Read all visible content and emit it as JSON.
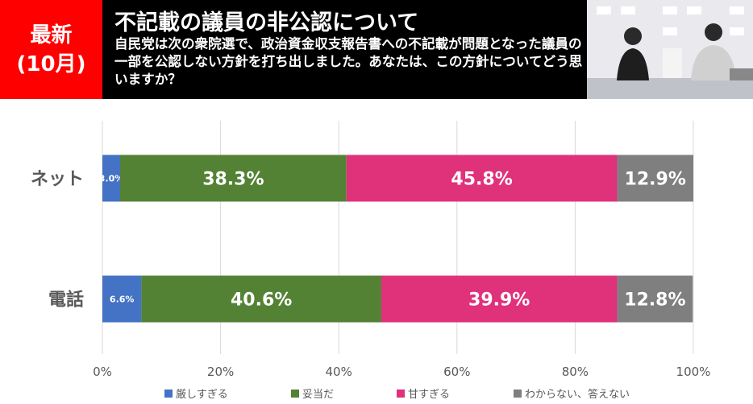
{
  "header": {
    "badge": [
      "最新",
      "(10月)"
    ],
    "title": "不記載の議員の非公認について",
    "subtitle": "自民党は次の衆院選で、政治資金収支報告書への不記載が問題となった議員の一部を公認しない方針を打ち出しました。あなたは、この方針についてどう思いますか？"
  },
  "chart_data": {
    "type": "bar",
    "orientation": "horizontal",
    "stacked": true,
    "categories": [
      "ネット",
      "電話"
    ],
    "series": [
      {
        "name": "厳しすぎる",
        "color": "#4472c4",
        "values": [
          3,
          6.6
        ],
        "value_labels": [
          "3.0%",
          "6.6%"
        ]
      },
      {
        "name": "妥当だ",
        "color": "#548235",
        "values": [
          38.3,
          40.6
        ],
        "value_labels": [
          "38.3%",
          "40.6%"
        ]
      },
      {
        "name": "甘すぎる",
        "color": "#e0317b",
        "values": [
          45.8,
          39.9
        ],
        "value_labels": [
          "45.8%",
          "39.9%"
        ]
      },
      {
        "name": "わからない、答えない",
        "color": "#7f7f7f",
        "values": [
          12.9,
          12.8
        ],
        "value_labels": [
          "12.9%",
          "12.8%"
        ]
      }
    ],
    "xlim": [
      0,
      100
    ],
    "xticks": [
      {
        "value": 0,
        "label": "0%"
      },
      {
        "value": 20,
        "label": "20%"
      },
      {
        "value": 40,
        "label": "40%"
      },
      {
        "value": 60,
        "label": "60%"
      },
      {
        "value": 80,
        "label": "80%"
      },
      {
        "value": 100,
        "label": "100%"
      }
    ],
    "grid": true,
    "legend": "bottom"
  }
}
